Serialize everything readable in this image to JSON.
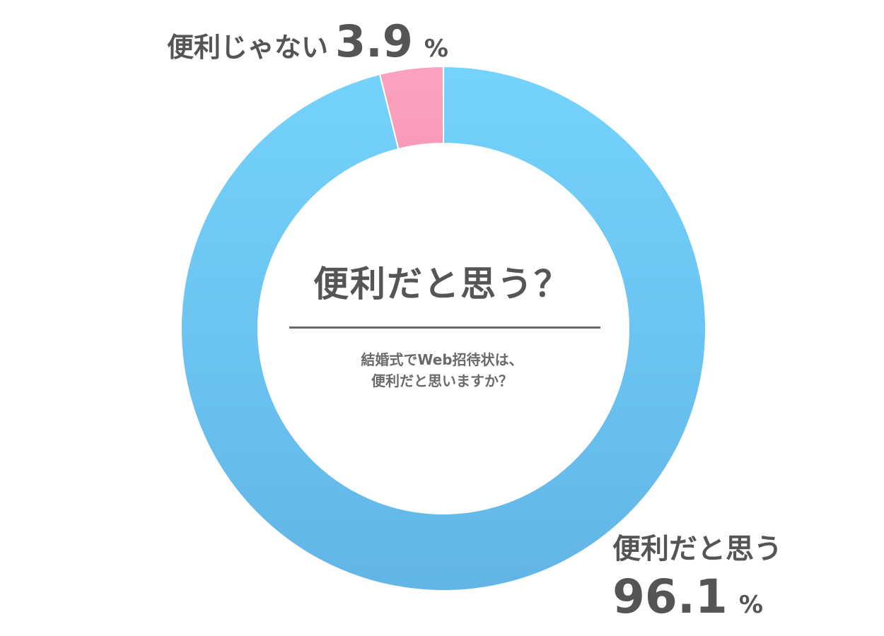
{
  "chart_data": {
    "type": "pie",
    "variant": "donut",
    "center_title": "便利だと思う？",
    "center_subtitle_lines": [
      "結婚式でWeb招待状は、",
      "便利だと思いますか？"
    ],
    "categories": [
      "便利だと思う",
      "便利じゃない"
    ],
    "values": [
      96.1,
      3.9
    ],
    "value_labels": [
      "96.1",
      "3.9"
    ],
    "unit": "%",
    "colors": {
      "便利だと思う": [
        "#74d3fc",
        "#62b5e6"
      ],
      "便利じゃない": [
        "#fba4bf",
        "#f89ab9"
      ]
    },
    "start_angle_deg": 0,
    "direction": "clockwise",
    "legend": "none"
  }
}
